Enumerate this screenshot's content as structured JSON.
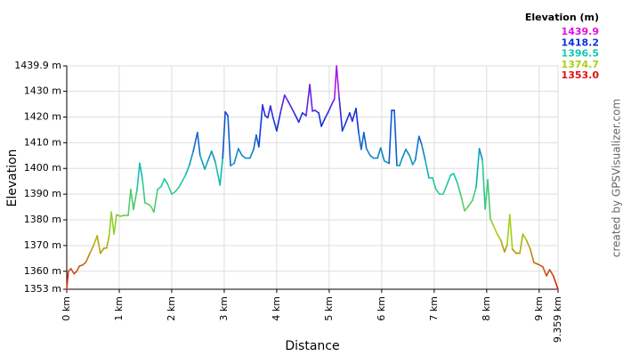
{
  "chart_data": {
    "type": "line",
    "ylabel": "Elevation",
    "xlabel": "Distance",
    "legend_title": "Elevation (m)",
    "credit": "created by GPSVisualizer.com",
    "color_scale": [
      {
        "value": 1439.9,
        "color": "#e010e0"
      },
      {
        "value": 1418.2,
        "color": "#1030e0"
      },
      {
        "value": 1396.5,
        "color": "#10c8b0"
      },
      {
        "value": 1374.7,
        "color": "#a8d010"
      },
      {
        "value": 1353,
        "label": "1353.0",
        "color": "#e01010"
      }
    ],
    "xlim": [
      0,
      9.359
    ],
    "ylim": [
      1353,
      1439.9
    ],
    "xticks": [
      {
        "value": 0,
        "label": "0 km"
      },
      {
        "value": 1,
        "label": "1 km"
      },
      {
        "value": 2,
        "label": "2 km"
      },
      {
        "value": 3,
        "label": "3 km"
      },
      {
        "value": 4,
        "label": "4 km"
      },
      {
        "value": 5,
        "label": "5 km"
      },
      {
        "value": 6,
        "label": "6 km"
      },
      {
        "value": 7,
        "label": "7 km"
      },
      {
        "value": 8,
        "label": "8 km"
      },
      {
        "value": 9,
        "label": "9 km"
      },
      {
        "value": 9.359,
        "label": "9.359 km"
      }
    ],
    "yticks": [
      {
        "value": 1353,
        "label": "1353 m"
      },
      {
        "value": 1360,
        "label": "1360 m"
      },
      {
        "value": 1370,
        "label": "1370 m"
      },
      {
        "value": 1380,
        "label": "1380 m"
      },
      {
        "value": 1390,
        "label": "1390 m"
      },
      {
        "value": 1400,
        "label": "1400 m"
      },
      {
        "value": 1410,
        "label": "1410 m"
      },
      {
        "value": 1420,
        "label": "1420 m"
      },
      {
        "value": 1430,
        "label": "1430 m"
      },
      {
        "value": 1439.9,
        "label": "1439.9 m"
      }
    ],
    "grid": true,
    "x": [
      0,
      0.03,
      0.08,
      0.14,
      0.19,
      0.24,
      0.31,
      0.37,
      0.44,
      0.51,
      0.58,
      0.64,
      0.71,
      0.76,
      0.81,
      0.85,
      0.9,
      0.95,
      1.02,
      1.08,
      1.17,
      1.22,
      1.27,
      1.34,
      1.39,
      1.44,
      1.49,
      1.56,
      1.61,
      1.66,
      1.73,
      1.8,
      1.86,
      1.92,
      2.0,
      2.07,
      2.14,
      2.2,
      2.27,
      2.34,
      2.41,
      2.49,
      2.54,
      2.63,
      2.69,
      2.76,
      2.83,
      2.92,
      2.97,
      3.02,
      3.07,
      3.12,
      3.19,
      3.27,
      3.34,
      3.41,
      3.49,
      3.56,
      3.61,
      3.66,
      3.73,
      3.78,
      3.83,
      3.88,
      3.93,
      4.0,
      4.07,
      4.15,
      4.22,
      4.29,
      4.36,
      4.42,
      4.49,
      4.56,
      4.63,
      4.68,
      4.73,
      4.8,
      4.85,
      4.92,
      4.98,
      5.05,
      5.1,
      5.14,
      5.19,
      5.25,
      5.32,
      5.39,
      5.44,
      5.51,
      5.56,
      5.61,
      5.66,
      5.71,
      5.78,
      5.85,
      5.92,
      5.98,
      6.05,
      6.14,
      6.19,
      6.24,
      6.29,
      6.34,
      6.39,
      6.46,
      6.53,
      6.59,
      6.64,
      6.71,
      6.76,
      6.83,
      6.9,
      6.97,
      7.03,
      7.1,
      7.17,
      7.24,
      7.31,
      7.37,
      7.44,
      7.51,
      7.58,
      7.64,
      7.73,
      7.8,
      7.86,
      7.92,
      7.97,
      8.02,
      8.07,
      8.14,
      8.2,
      8.27,
      8.34,
      8.39,
      8.44,
      8.49,
      8.56,
      8.63,
      8.69,
      8.76,
      8.83,
      8.9,
      8.98,
      9.07,
      9.14,
      9.2,
      9.27,
      9.359
    ],
    "values": [
      1353,
      1360,
      1361,
      1359,
      1360,
      1362,
      1362.5,
      1363.7,
      1367,
      1370,
      1373.8,
      1367,
      1369,
      1369,
      1374,
      1383,
      1374.5,
      1382,
      1381.4,
      1381.7,
      1381.7,
      1391.8,
      1384,
      1391.8,
      1402,
      1396,
      1386.6,
      1386,
      1385,
      1383,
      1391.8,
      1393,
      1396,
      1394,
      1390,
      1391,
      1392.8,
      1395,
      1397.7,
      1401.5,
      1406.7,
      1414,
      1405,
      1399.7,
      1403,
      1406.7,
      1402.5,
      1393.5,
      1404,
      1422,
      1420.5,
      1401,
      1402,
      1407.7,
      1405,
      1404,
      1404,
      1407.4,
      1413,
      1408.4,
      1424.7,
      1420.5,
      1419.7,
      1424.3,
      1419.8,
      1414.6,
      1421.6,
      1428.5,
      1426,
      1423.3,
      1420.5,
      1418,
      1421.6,
      1420.5,
      1432.6,
      1422.3,
      1422.6,
      1421.6,
      1416.4,
      1419.5,
      1421.9,
      1425,
      1427,
      1439.9,
      1427.4,
      1414.6,
      1418,
      1421.6,
      1418.4,
      1423.3,
      1414,
      1407.4,
      1414,
      1407.7,
      1405,
      1404,
      1404,
      1408,
      1402.9,
      1402,
      1422.6,
      1422.6,
      1401.1,
      1401.1,
      1404,
      1407.4,
      1405,
      1401.5,
      1403.2,
      1412.5,
      1409.4,
      1403.2,
      1396.3,
      1396.3,
      1392,
      1390,
      1390,
      1393.5,
      1397.3,
      1398,
      1394.5,
      1389.4,
      1383.5,
      1385,
      1387.6,
      1392.8,
      1407.7,
      1403.2,
      1384.2,
      1395.6,
      1380.4,
      1377.2,
      1374.5,
      1372,
      1367.5,
      1370.3,
      1382,
      1368.6,
      1367,
      1367,
      1374.5,
      1372,
      1368.6,
      1363.4,
      1362.7,
      1361.7,
      1358.2,
      1360.6,
      1358.2,
      1353
    ]
  }
}
